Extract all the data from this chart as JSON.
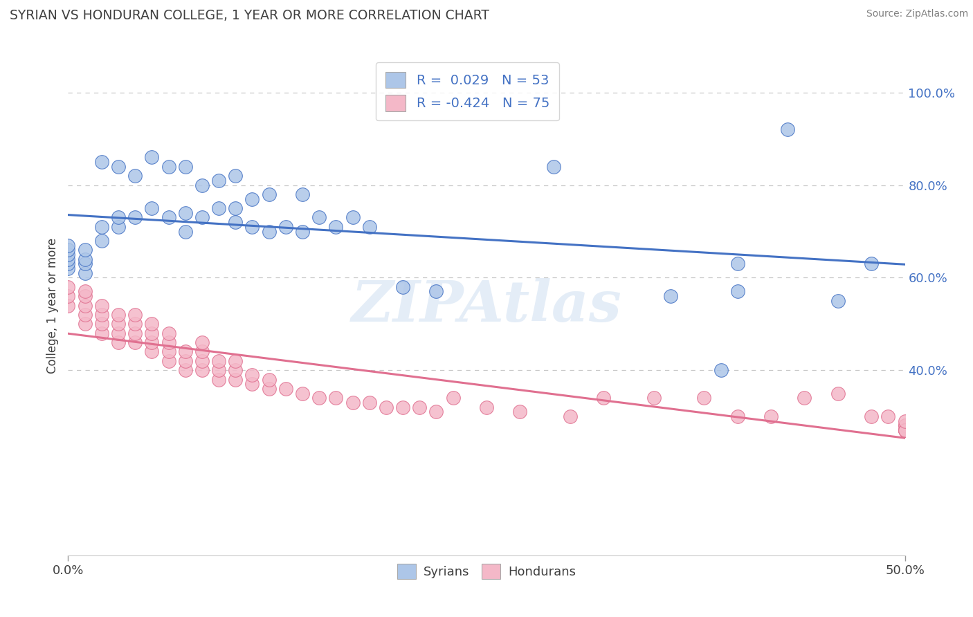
{
  "title": "SYRIAN VS HONDURAN COLLEGE, 1 YEAR OR MORE CORRELATION CHART",
  "source_text": "Source: ZipAtlas.com",
  "ylabel": "College, 1 year or more",
  "watermark": "ZIPAtlas",
  "legend_entries": [
    {
      "label": "Syrians",
      "R": 0.029,
      "N": 53,
      "face_color": "#adc6e8",
      "edge_color": "#4472c4",
      "line_color": "#4472c4"
    },
    {
      "label": "Hondurans",
      "R": -0.424,
      "N": 75,
      "face_color": "#f4b8c8",
      "edge_color": "#e07090",
      "line_color": "#e07090"
    }
  ],
  "xlim": [
    0.0,
    0.5
  ],
  "ylim": [
    0.0,
    1.08
  ],
  "x_tick_positions": [
    0.0,
    0.5
  ],
  "x_tick_labels": [
    "0.0%",
    "50.0%"
  ],
  "y_ticks_right": [
    0.4,
    0.6,
    0.8,
    1.0
  ],
  "y_tick_labels_right": [
    "40.0%",
    "60.0%",
    "80.0%",
    "100.0%"
  ],
  "background_color": "#ffffff",
  "grid_color": "#c8c8c8",
  "title_color": "#404040",
  "source_color": "#808080",
  "syrians_x": [
    0.0,
    0.0,
    0.0,
    0.0,
    0.0,
    0.0,
    0.01,
    0.01,
    0.01,
    0.01,
    0.02,
    0.02,
    0.02,
    0.03,
    0.03,
    0.03,
    0.04,
    0.04,
    0.05,
    0.05,
    0.06,
    0.06,
    0.07,
    0.07,
    0.07,
    0.08,
    0.08,
    0.09,
    0.09,
    0.1,
    0.1,
    0.1,
    0.11,
    0.11,
    0.12,
    0.12,
    0.13,
    0.14,
    0.14,
    0.15,
    0.16,
    0.17,
    0.18,
    0.2,
    0.22,
    0.29,
    0.36,
    0.39,
    0.4,
    0.4,
    0.43,
    0.46,
    0.48
  ],
  "syrians_y": [
    0.62,
    0.63,
    0.64,
    0.65,
    0.66,
    0.67,
    0.61,
    0.63,
    0.64,
    0.66,
    0.68,
    0.71,
    0.85,
    0.71,
    0.73,
    0.84,
    0.73,
    0.82,
    0.75,
    0.86,
    0.73,
    0.84,
    0.7,
    0.74,
    0.84,
    0.73,
    0.8,
    0.75,
    0.81,
    0.72,
    0.75,
    0.82,
    0.71,
    0.77,
    0.7,
    0.78,
    0.71,
    0.7,
    0.78,
    0.73,
    0.71,
    0.73,
    0.71,
    0.58,
    0.57,
    0.84,
    0.56,
    0.4,
    0.57,
    0.63,
    0.92,
    0.55,
    0.63
  ],
  "hondurans_x": [
    0.0,
    0.0,
    0.0,
    0.01,
    0.01,
    0.01,
    0.01,
    0.01,
    0.02,
    0.02,
    0.02,
    0.02,
    0.03,
    0.03,
    0.03,
    0.03,
    0.04,
    0.04,
    0.04,
    0.04,
    0.05,
    0.05,
    0.05,
    0.05,
    0.06,
    0.06,
    0.06,
    0.06,
    0.07,
    0.07,
    0.07,
    0.08,
    0.08,
    0.08,
    0.08,
    0.09,
    0.09,
    0.09,
    0.1,
    0.1,
    0.1,
    0.11,
    0.11,
    0.12,
    0.12,
    0.13,
    0.14,
    0.15,
    0.16,
    0.17,
    0.18,
    0.19,
    0.2,
    0.21,
    0.22,
    0.23,
    0.25,
    0.27,
    0.3,
    0.32,
    0.35,
    0.38,
    0.4,
    0.42,
    0.44,
    0.46,
    0.48,
    0.49,
    0.5,
    0.5,
    0.5,
    0.5,
    0.5,
    0.5,
    0.5
  ],
  "hondurans_y": [
    0.54,
    0.56,
    0.58,
    0.5,
    0.52,
    0.54,
    0.56,
    0.57,
    0.48,
    0.5,
    0.52,
    0.54,
    0.46,
    0.48,
    0.5,
    0.52,
    0.46,
    0.48,
    0.5,
    0.52,
    0.44,
    0.46,
    0.48,
    0.5,
    0.42,
    0.44,
    0.46,
    0.48,
    0.4,
    0.42,
    0.44,
    0.4,
    0.42,
    0.44,
    0.46,
    0.38,
    0.4,
    0.42,
    0.38,
    0.4,
    0.42,
    0.37,
    0.39,
    0.36,
    0.38,
    0.36,
    0.35,
    0.34,
    0.34,
    0.33,
    0.33,
    0.32,
    0.32,
    0.32,
    0.31,
    0.34,
    0.32,
    0.31,
    0.3,
    0.34,
    0.34,
    0.34,
    0.3,
    0.3,
    0.34,
    0.35,
    0.3,
    0.3,
    0.28,
    0.28,
    0.27,
    0.27,
    0.27,
    0.27,
    0.29
  ]
}
